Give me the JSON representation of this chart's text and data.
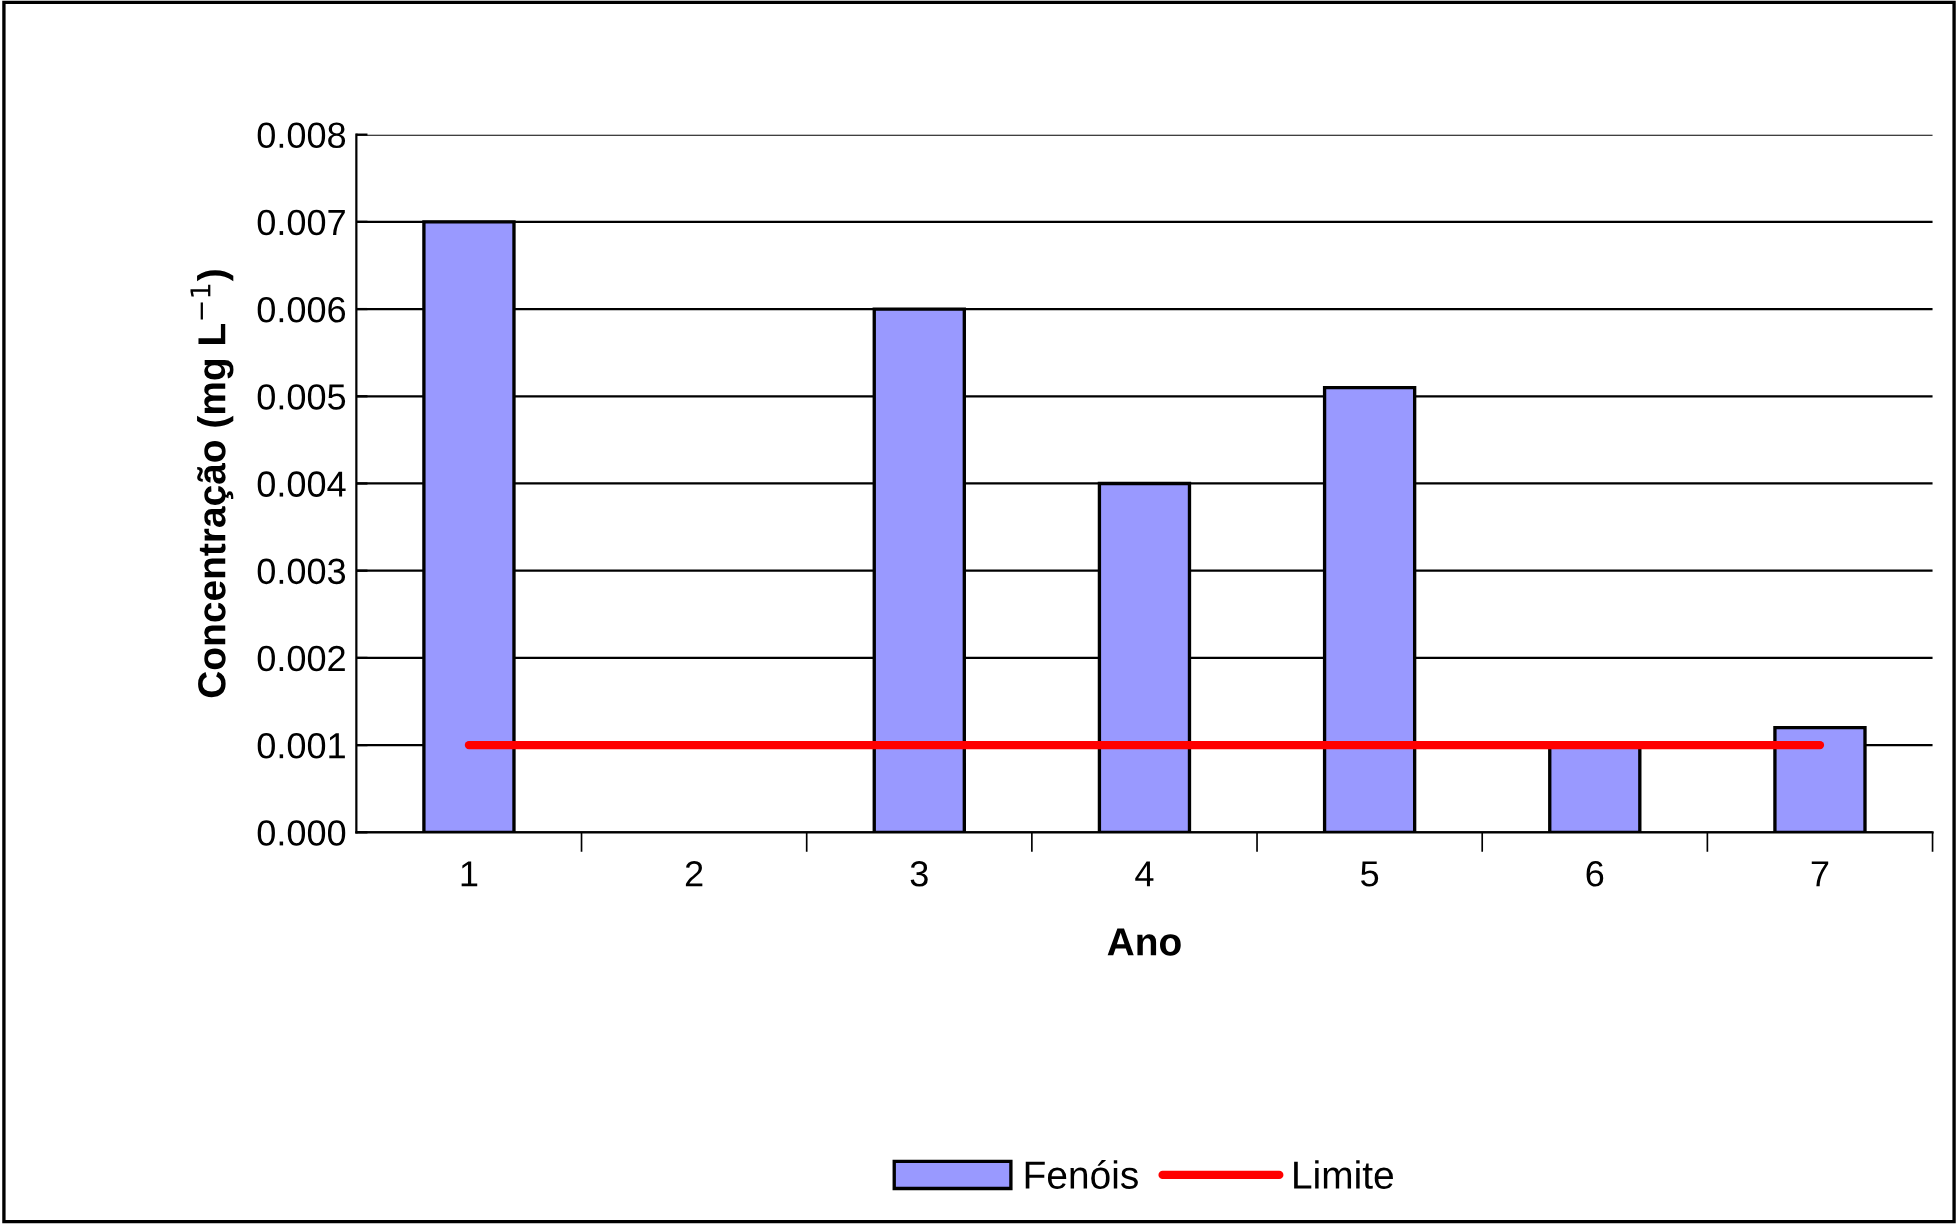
{
  "chart_data": {
    "type": "bar",
    "xlabel": "Ano",
    "ylabel": "Concentração (mg L$^{−1}$)",
    "categories": [
      "1",
      "2",
      "3",
      "4",
      "5",
      "6",
      "7"
    ],
    "series": [
      {
        "name": "Fenóis",
        "color": "#9999ff",
        "values": [
          0.007,
          null,
          0.006,
          0.004,
          0.0051,
          0.001,
          0.0012
        ]
      },
      {
        "name": "Limite",
        "type": "line",
        "color": "#ff0000",
        "values": [
          0.001,
          0.001,
          0.001,
          0.001,
          0.001,
          0.001,
          0.001
        ]
      }
    ],
    "ylim": [
      0,
      0.008
    ],
    "yticks": [
      {
        "value": 0,
        "label": "0.000"
      },
      {
        "value": 0.001,
        "label": "0.001"
      },
      {
        "value": 0.002,
        "label": "0.002"
      },
      {
        "value": 0.003,
        "label": "0.003"
      },
      {
        "value": 0.004,
        "label": "0.004"
      },
      {
        "value": 0.005,
        "label": "0.005"
      },
      {
        "value": 0.006,
        "label": "0.006"
      },
      {
        "value": 0.007,
        "label": "0.007"
      },
      {
        "value": 0.008,
        "label": "0.008"
      }
    ],
    "grid": "y",
    "legend": "bottom"
  }
}
